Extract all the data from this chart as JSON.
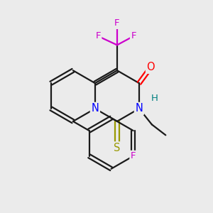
{
  "background_color": "#ebebeb",
  "bond_color": "#1a1a1a",
  "atom_colors": {
    "N": "#0000ff",
    "O": "#ff0000",
    "S": "#999900",
    "F": "#cc00cc",
    "H": "#008080",
    "C": "#1a1a1a"
  },
  "figsize": [
    3.0,
    3.0
  ],
  "dpi": 100,
  "xlim": [
    0,
    10
  ],
  "ylim": [
    0,
    10
  ]
}
